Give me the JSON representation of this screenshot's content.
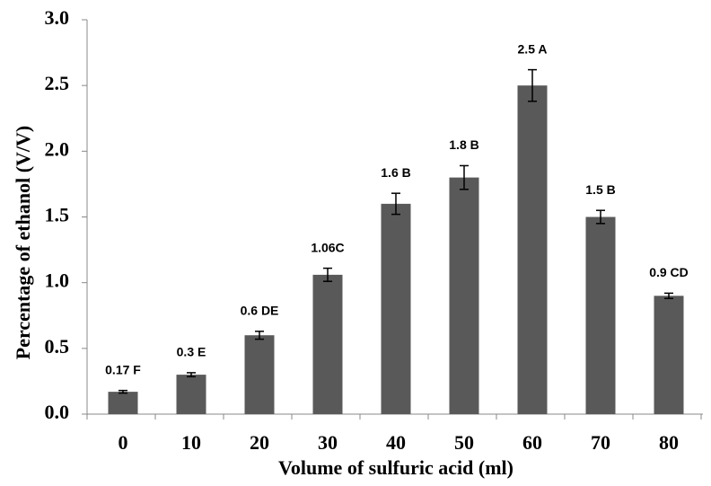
{
  "chart_data": {
    "type": "bar",
    "x_label": "Volume of sulfuric acid (ml)",
    "y_label": "Percentage of ethanol (V/V)",
    "categories": [
      "0",
      "10",
      "20",
      "30",
      "40",
      "50",
      "60",
      "70",
      "80"
    ],
    "values": [
      0.17,
      0.3,
      0.6,
      1.06,
      1.6,
      1.8,
      2.5,
      1.5,
      0.9
    ],
    "value_labels": [
      "0.17 F",
      "0.3 E",
      "0.6 DE",
      "1.06C",
      "1.6 B",
      "1.8 B",
      "2.5 A",
      "1.5 B",
      "0.9 CD"
    ],
    "errors": [
      0.01,
      0.015,
      0.03,
      0.05,
      0.08,
      0.09,
      0.12,
      0.05,
      0.02
    ],
    "color": "#595959",
    "ylim": [
      0,
      3
    ],
    "yticks": [
      {
        "value": 0,
        "label": "0.0"
      },
      0.5,
      {
        "value": 1,
        "label": "1.0"
      },
      1.5,
      {
        "value": 2,
        "label": "2.0"
      },
      2.5,
      {
        "value": 3,
        "label": "3.0"
      }
    ],
    "grid": false
  }
}
